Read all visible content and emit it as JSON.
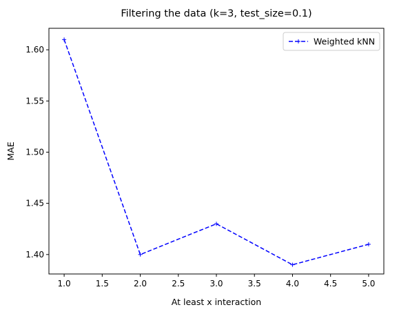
{
  "chart_data": {
    "type": "line",
    "title": "Filtering the data (k=3, test_size=0.1)",
    "xlabel": "At least x interaction",
    "ylabel": "MAE",
    "xlim": [
      0.8,
      5.2
    ],
    "ylim": [
      1.381,
      1.621
    ],
    "xticks": [
      1.0,
      1.5,
      2.0,
      2.5,
      3.0,
      3.5,
      4.0,
      4.5,
      5.0
    ],
    "xtick_labels": [
      "1.0",
      "1.5",
      "2.0",
      "2.5",
      "3.0",
      "3.5",
      "4.0",
      "4.5",
      "5.0"
    ],
    "yticks": [
      1.4,
      1.45,
      1.5,
      1.55,
      1.6
    ],
    "ytick_labels": [
      "1.40",
      "1.45",
      "1.50",
      "1.55",
      "1.60"
    ],
    "grid": false,
    "legend_position": "top-right",
    "series": [
      {
        "name": "Weighted kNN",
        "color": "#0000ff",
        "linestyle": "dashed",
        "marker": "plus",
        "x": [
          1.0,
          2.0,
          3.0,
          4.0,
          5.0
        ],
        "y": [
          1.61,
          1.4,
          1.43,
          1.39,
          1.41
        ]
      }
    ]
  }
}
